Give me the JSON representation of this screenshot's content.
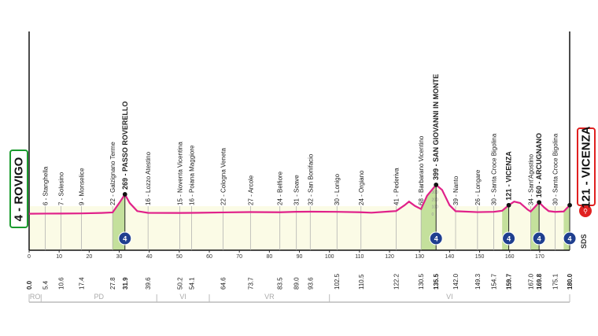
{
  "chart_data": {
    "type": "area",
    "start": {
      "label": "4 - ROVIGO",
      "color": "#1a9a2e"
    },
    "finish": {
      "label": "121 - VICENZA",
      "color": "#e02020"
    },
    "line_color": "#e0218a",
    "climb_fill": "#b7d98a",
    "kom_category": "4",
    "kom_color": "#1f3f8f",
    "sprint_label": "SDS",
    "altitude_ticks": [
      "0",
      "100",
      "200",
      "300"
    ],
    "x_ticks": [
      "0",
      "10",
      "20",
      "30",
      "40",
      "50",
      "60",
      "70",
      "80",
      "90",
      "100",
      "110",
      "120",
      "130",
      "140",
      "150",
      "160",
      "170"
    ],
    "xlim": [
      0,
      180
    ],
    "waypoints": [
      {
        "km": "0.0",
        "alt": 4,
        "name": "",
        "bold": true
      },
      {
        "km": "5.4",
        "alt": 6,
        "name": "6 - Stanghella"
      },
      {
        "km": "10.6",
        "alt": 7,
        "name": "7 - Solesino"
      },
      {
        "km": "17.4",
        "alt": 9,
        "name": "9 - Monselice"
      },
      {
        "km": "27.8",
        "alt": 22,
        "name": "22 - Galzignano Terme"
      },
      {
        "km": "31.9",
        "alt": 269,
        "name": "269 - PASSO ROVERELLO",
        "bold": true,
        "kom": true
      },
      {
        "km": "39.6",
        "alt": 16,
        "name": "16 - Lozzo Atestino"
      },
      {
        "km": "50.2",
        "alt": 15,
        "name": "15 - Noventa Vicentina"
      },
      {
        "km": "54.1",
        "alt": 16,
        "name": "16 - Poiana Maggiore"
      },
      {
        "km": "64.6",
        "alt": 22,
        "name": "22 - Cologna Veneta"
      },
      {
        "km": "73.7",
        "alt": 27,
        "name": "27 - Arcole"
      },
      {
        "km": "83.5",
        "alt": 24,
        "name": "24 - Belfiore"
      },
      {
        "km": "89.0",
        "alt": 31,
        "name": "31 - Soave"
      },
      {
        "km": "93.6",
        "alt": 32,
        "name": "32 - San Bonifacio"
      },
      {
        "km": "102.5",
        "alt": 30,
        "name": "30 - Lonigo"
      },
      {
        "km": "110.5",
        "alt": 24,
        "name": "24 - Orgiano"
      },
      {
        "km": "122.2",
        "alt": 41,
        "name": "41 - Pederiva"
      },
      {
        "km": "130.5",
        "alt": 68,
        "name": "68 - Barbarano Vicentino"
      },
      {
        "km": "135.5",
        "alt": 399,
        "name": "399 - SAN GIOVANNI IN MONTE",
        "bold": true,
        "kom": true
      },
      {
        "km": "142.0",
        "alt": 39,
        "name": "39 - Nanto"
      },
      {
        "km": "149.3",
        "alt": 26,
        "name": "26 - Longare"
      },
      {
        "km": "154.7",
        "alt": 30,
        "name": "30 - Santa Croce Bigolina"
      },
      {
        "km": "159.7",
        "alt": 121,
        "name": "121 - VICENZA",
        "bold": true,
        "kom": true
      },
      {
        "km": "167.0",
        "alt": 34,
        "name": "34 - Sant'Agostino"
      },
      {
        "km": "169.8",
        "alt": 160,
        "name": "160 - ARCUGNANO",
        "bold": true,
        "kom": true
      },
      {
        "km": "175.1",
        "alt": 30,
        "name": "30 - Santa Croce Bigolina"
      },
      {
        "km": "180.0",
        "alt": 121,
        "name": "",
        "bold": true,
        "kom": true
      }
    ],
    "profile": [
      [
        0,
        4
      ],
      [
        5.4,
        6
      ],
      [
        10.6,
        7
      ],
      [
        17.4,
        9
      ],
      [
        24,
        15
      ],
      [
        27.8,
        22
      ],
      [
        30,
        150
      ],
      [
        31.9,
        269
      ],
      [
        33.5,
        150
      ],
      [
        36,
        40
      ],
      [
        39.6,
        16
      ],
      [
        50.2,
        15
      ],
      [
        54.1,
        16
      ],
      [
        64.6,
        22
      ],
      [
        73.7,
        27
      ],
      [
        83.5,
        24
      ],
      [
        89,
        31
      ],
      [
        93.6,
        32
      ],
      [
        102.5,
        30
      ],
      [
        110.5,
        24
      ],
      [
        114,
        18
      ],
      [
        120,
        35
      ],
      [
        122.2,
        41
      ],
      [
        125,
        120
      ],
      [
        126.5,
        170
      ],
      [
        128.5,
        110
      ],
      [
        130.5,
        68
      ],
      [
        132.5,
        250
      ],
      [
        135.5,
        399
      ],
      [
        137.5,
        330
      ],
      [
        140,
        120
      ],
      [
        142,
        39
      ],
      [
        149.3,
        26
      ],
      [
        154.7,
        30
      ],
      [
        157.5,
        45
      ],
      [
        159.7,
        121
      ],
      [
        161.5,
        170
      ],
      [
        163.5,
        150
      ],
      [
        166,
        60
      ],
      [
        167,
        34
      ],
      [
        169.8,
        160
      ],
      [
        171.5,
        90
      ],
      [
        173,
        40
      ],
      [
        175.1,
        30
      ],
      [
        178,
        35
      ],
      [
        180,
        121
      ]
    ],
    "provinces": [
      {
        "label": "RO",
        "from": 0,
        "to": 4
      },
      {
        "label": "PD",
        "from": 4,
        "to": 42.5
      },
      {
        "label": "VI",
        "from": 42.5,
        "to": 60
      },
      {
        "label": "VR",
        "from": 60,
        "to": 100
      },
      {
        "label": "VI",
        "from": 100,
        "to": 180
      }
    ]
  }
}
